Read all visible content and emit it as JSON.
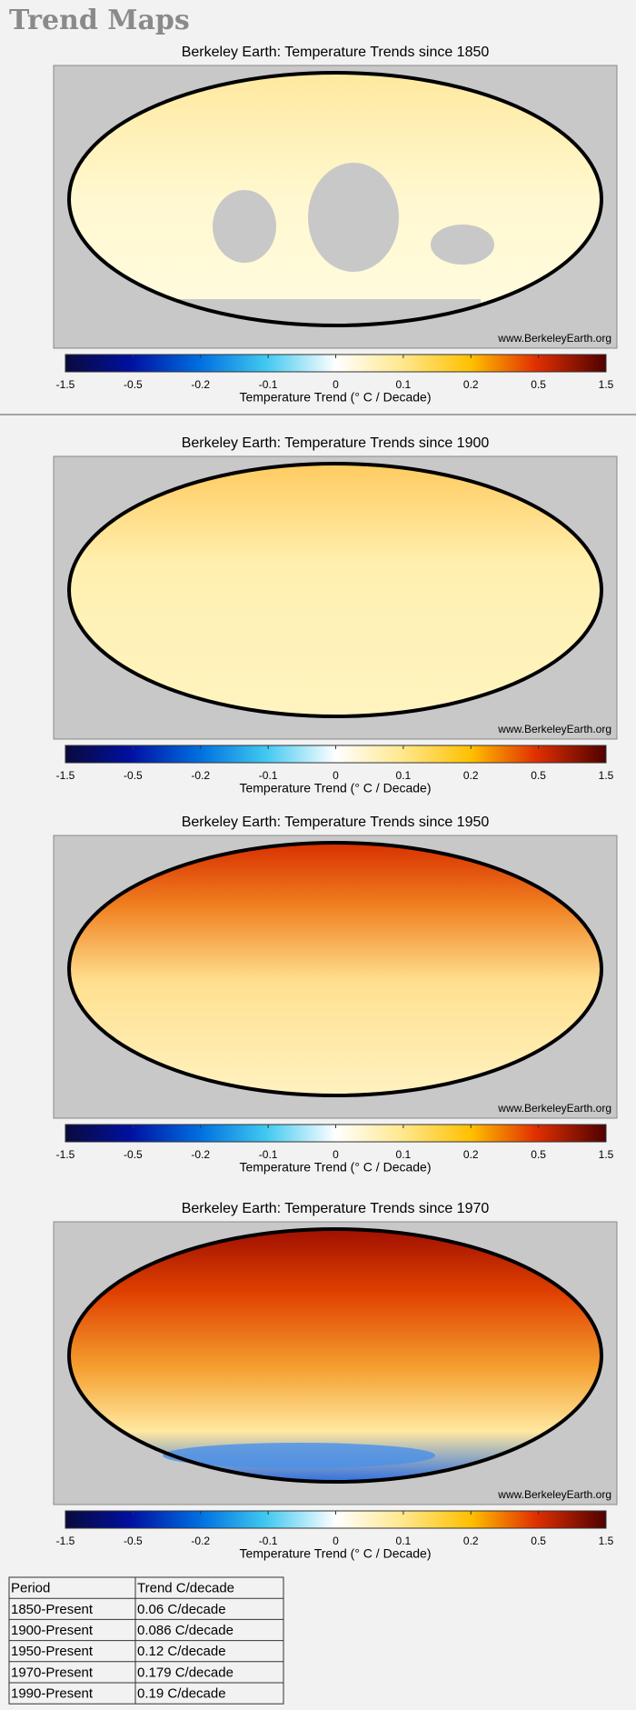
{
  "header": {
    "title": "Trend Maps"
  },
  "maps": [
    {
      "title": "Berkeley Earth: Temperature Trends since 1850"
    },
    {
      "title": "Berkeley Earth: Temperature Trends since 1900"
    },
    {
      "title": "Berkeley Earth: Temperature Trends since 1950"
    },
    {
      "title": "Berkeley Earth: Temperature Trends since 1970"
    }
  ],
  "watermark": "www.BerkeleyEarth.org",
  "colorbar": {
    "ticks": [
      "-1.5",
      "-0.5",
      "-0.2",
      "-0.1",
      "0",
      "0.1",
      "0.2",
      "0.5",
      "1.5"
    ],
    "label": "Temperature Trend (° C / Decade)"
  },
  "table": {
    "header": [
      "Period",
      "Trend C/decade"
    ],
    "rows": [
      [
        "1850-Present",
        "0.06 C/decade"
      ],
      [
        "1900-Present",
        "0.086 C/decade"
      ],
      [
        "1950-Present",
        "0.12 C/decade"
      ],
      [
        "1970-Present",
        "0.179 C/decade"
      ],
      [
        "1990-Present",
        "0.19 C/decade"
      ]
    ]
  }
}
